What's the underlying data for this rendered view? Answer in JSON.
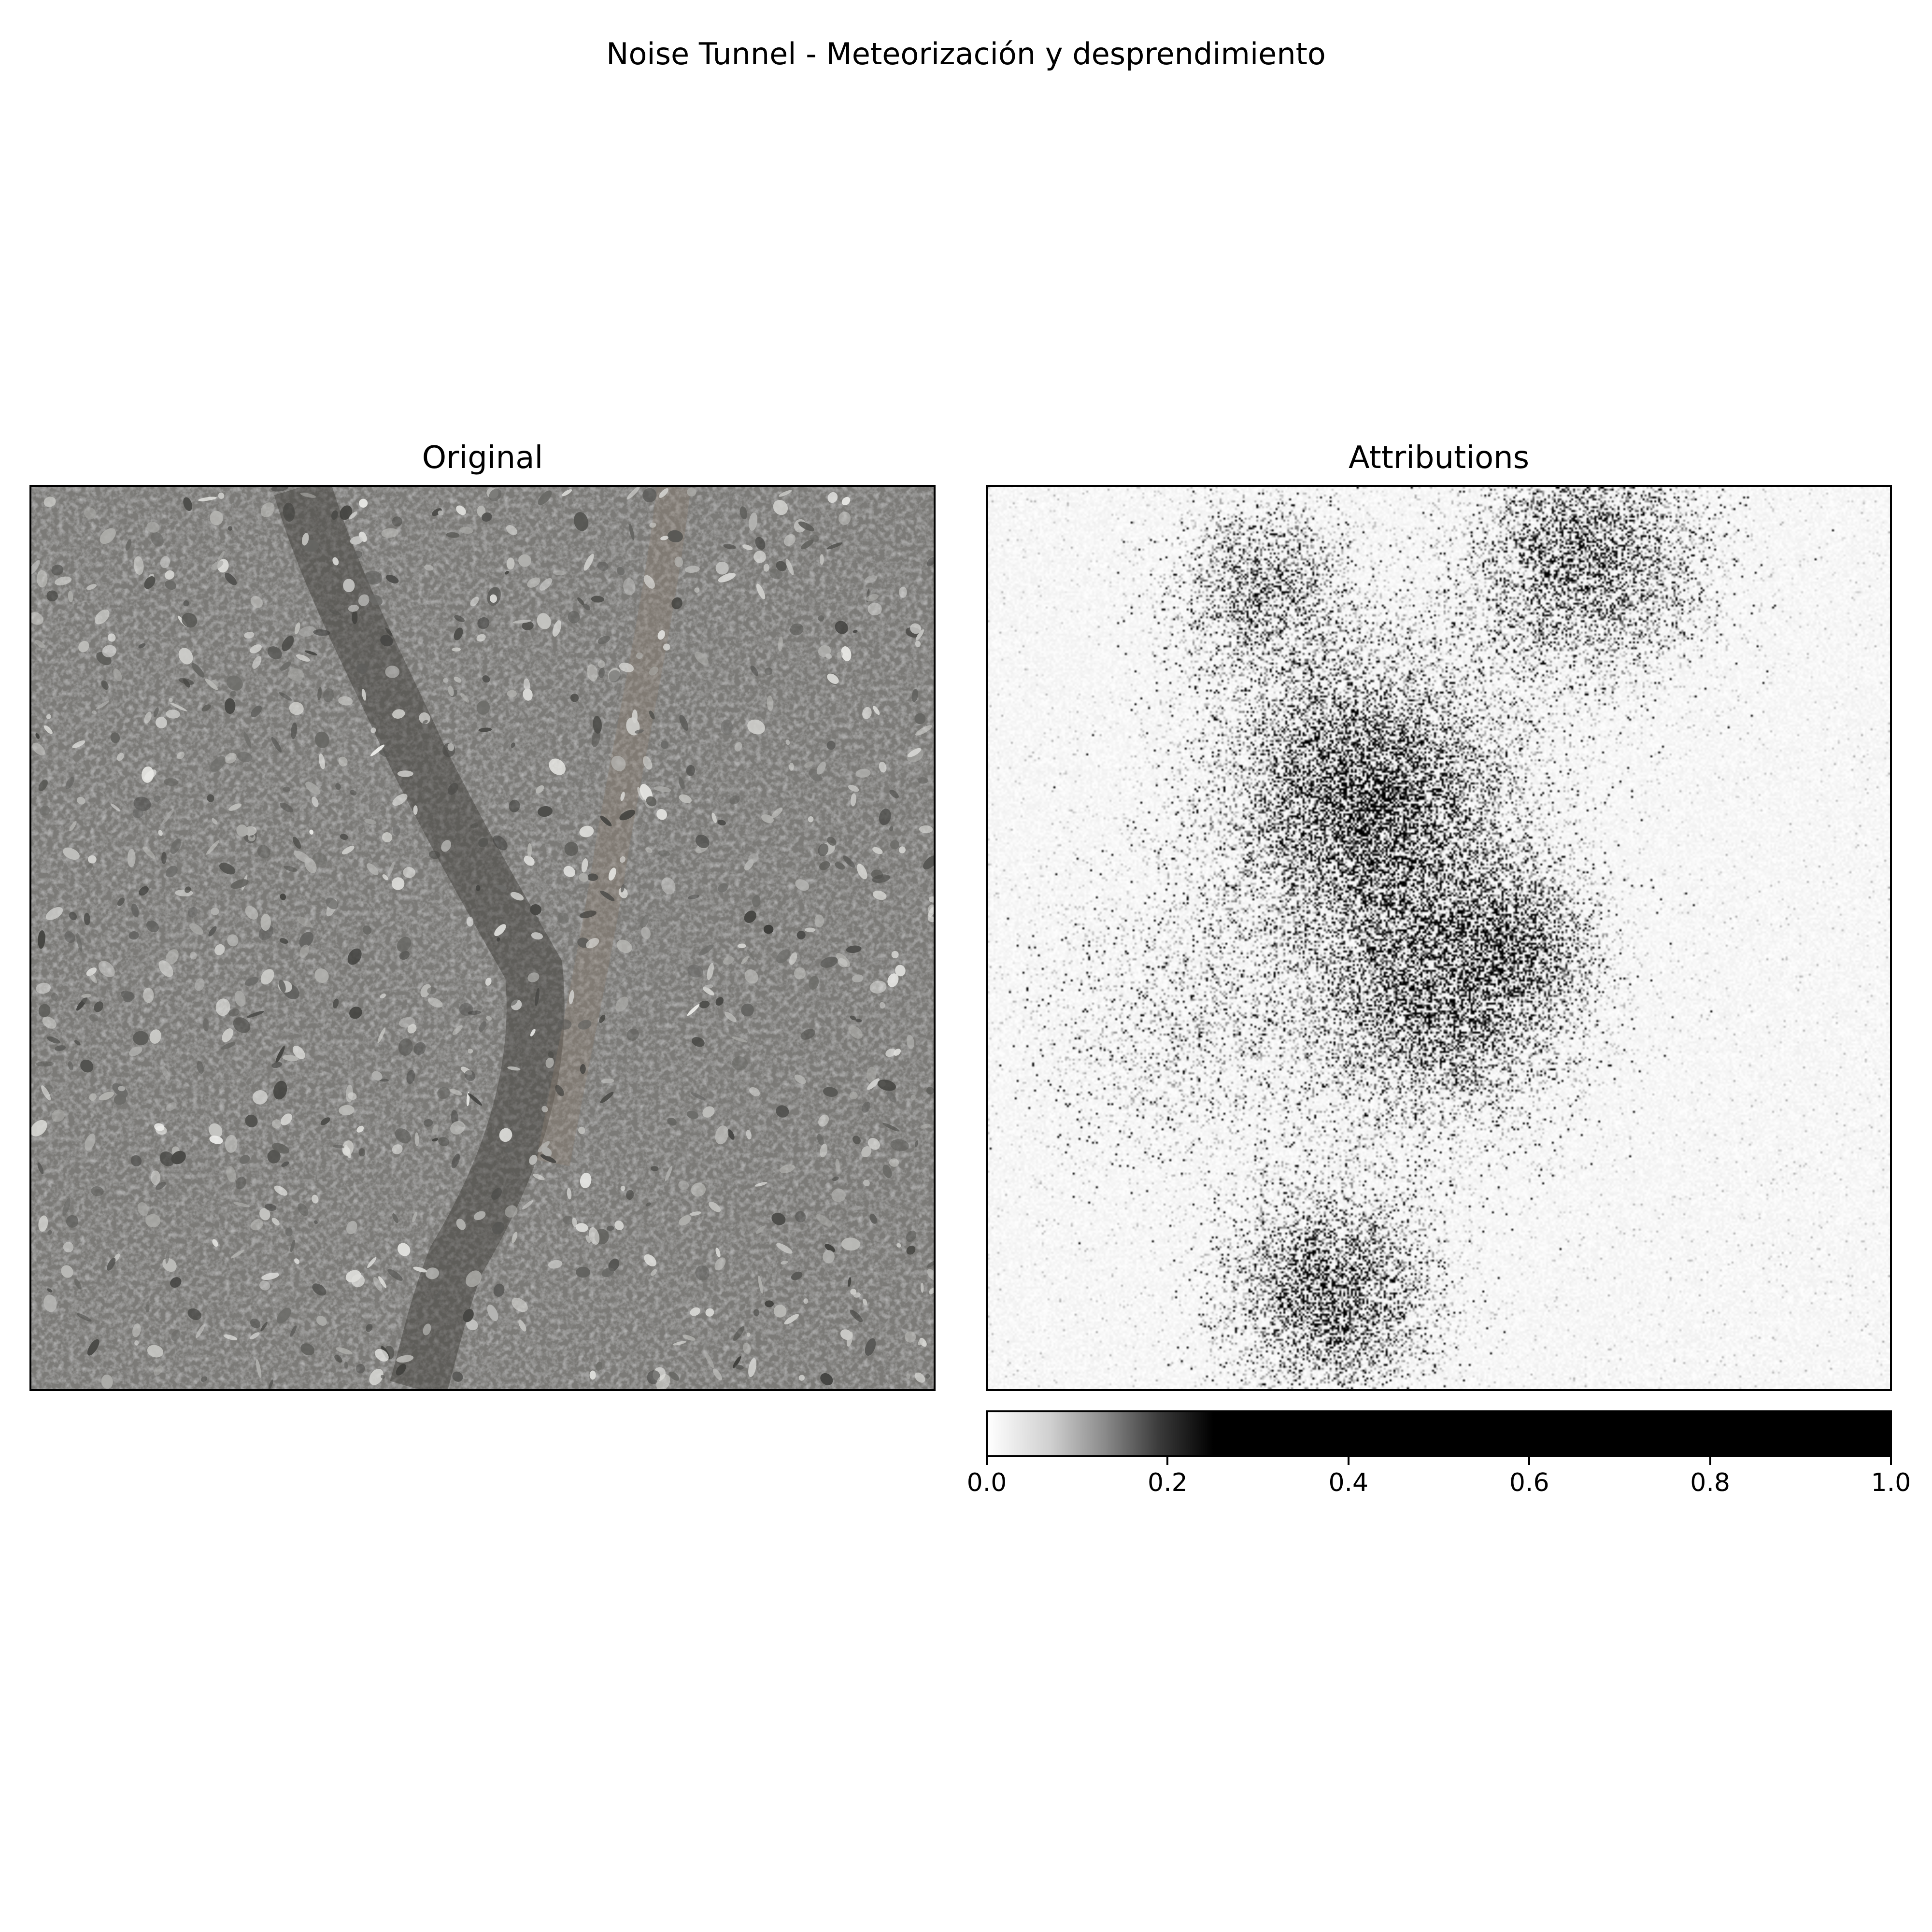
{
  "figure": {
    "suptitle": "Noise Tunnel - Meteorización y desprendimiento"
  },
  "panels": {
    "original": {
      "title": "Original"
    },
    "attributions": {
      "title": "Attributions"
    }
  },
  "chart_data": {
    "type": "heatmap",
    "title": "Attributions",
    "colormap": "Greys",
    "colorbar": {
      "orientation": "horizontal",
      "range": [
        0.0,
        1.0
      ],
      "ticks": [
        0.0,
        0.2,
        0.4,
        0.6,
        0.8,
        1.0
      ],
      "tick_labels": [
        "0.0",
        "0.2",
        "0.4",
        "0.6",
        "0.8",
        "1.0"
      ],
      "saturation_value": 0.25
    },
    "grid": false,
    "axes_ticks_visible": false
  },
  "colors": {
    "asphalt_base": "#7b7a77",
    "asphalt_dark": "#3f3d3a",
    "asphalt_light": "#d8d8d4",
    "attribution_high": "#000000",
    "attribution_low": "#ffffff"
  }
}
